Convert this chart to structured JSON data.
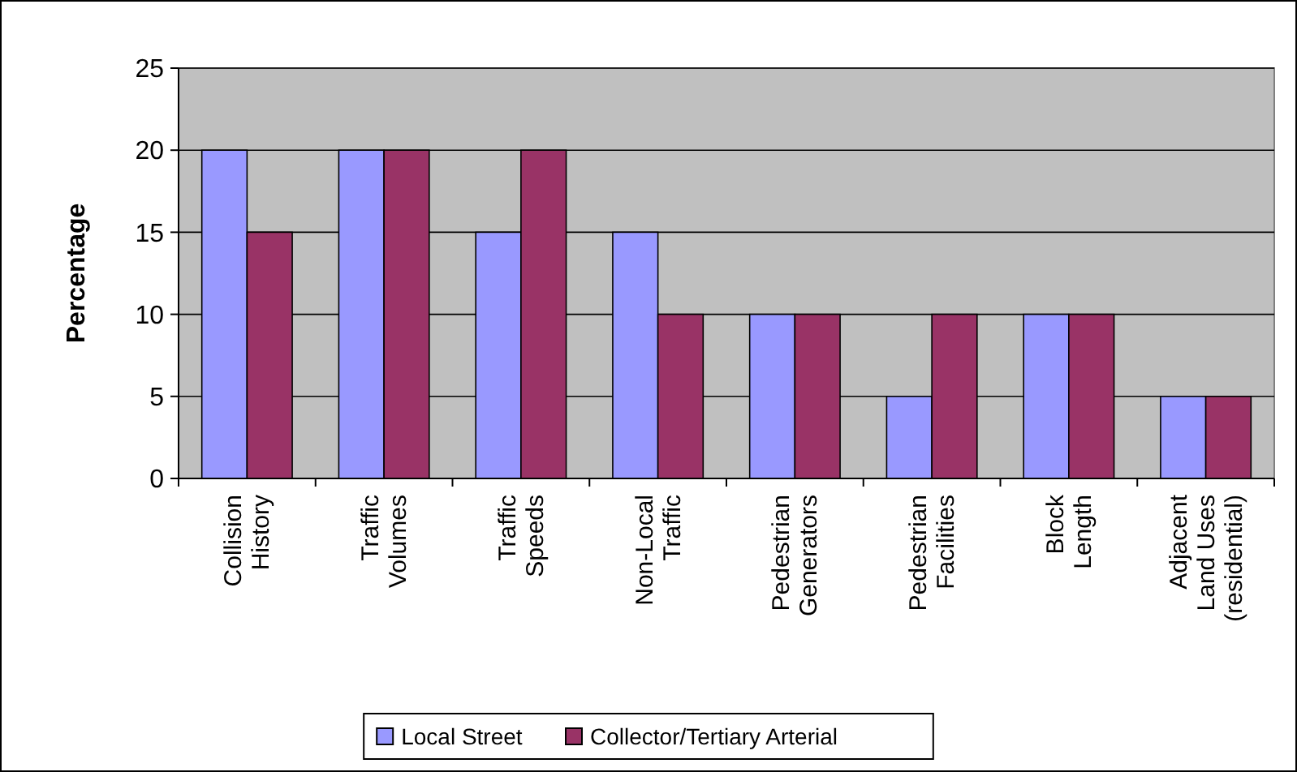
{
  "chart_data": {
    "type": "bar",
    "ylabel": "Percentage",
    "categories": [
      "Collision History",
      "Traffic Volumes",
      "Traffic Speeds",
      "Non-Local Traffic",
      "Pedestrian Generators",
      "Pedestrian Facilities",
      "Block Length",
      "Adjacent Land Uses (residential)"
    ],
    "series": [
      {
        "name": "Local Street",
        "color": "#9999ff",
        "values": [
          20,
          20,
          15,
          15,
          10,
          5,
          10,
          5
        ]
      },
      {
        "name": "Collector/Tertiary Arterial",
        "color": "#993366",
        "values": [
          15,
          20,
          20,
          10,
          10,
          10,
          10,
          5
        ]
      }
    ],
    "ylim": [
      0,
      25
    ],
    "yticks": [
      0,
      5,
      10,
      15,
      20,
      25
    ],
    "grid": "y",
    "legend": "bottom"
  }
}
